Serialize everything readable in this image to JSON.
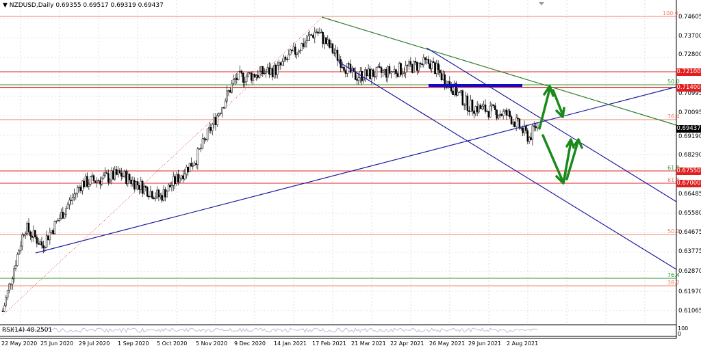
{
  "header": {
    "symbol_text": "NZDUSD,Daily  0.69355 0.69517 0.69319 0.69437",
    "menu_arrow": "▼"
  },
  "rsi": {
    "label": "RSI(14) 48.2501",
    "scale_top": "100",
    "scale_bottom": "0"
  },
  "colors": {
    "red_level": "#e02020",
    "orange_level": "#f08060",
    "green_level": "#2e9a2e",
    "channel": "#1a1aa0",
    "arrow": "#1a8a1a",
    "blue_bar": "#0a0ad0"
  },
  "price_ticks": [
    "0.74605",
    "0.73700",
    "0.72800",
    "0.70995",
    "0.70095",
    "0.69190",
    "0.68290",
    "0.66485",
    "0.65580",
    "0.64675",
    "0.63775",
    "0.62870",
    "0.61970",
    "0.61065"
  ],
  "price_badges": {
    "r1": "0.72100",
    "r2": "0.71400",
    "current": "0.69437",
    "r3": "0.67550",
    "r4": "0.67000"
  },
  "fib_labels": {
    "f100": "100.0",
    "f50a": "50.0",
    "f764a": "76.4",
    "f618a": "61.8",
    "f618b": "61.8",
    "f50b": "50.0",
    "f764b": "76.4",
    "f382": "38.2"
  },
  "date_ticks": [
    "22 May 2020",
    "25 Jun 2020",
    "29 Jul 2020",
    "1 Sep 2020",
    "5 Oct 2020",
    "5 Nov 2020",
    "9 Dec 2020",
    "14 Jan 2021",
    "17 Feb 2021",
    "21 Mar 2021",
    "22 Apr 2021",
    "26 May 2021",
    "29 Jun 2021",
    "2 Aug 2021"
  ],
  "chart_data": {
    "type": "candlestick",
    "symbol": "NZDUSD",
    "timeframe": "Daily",
    "ohlc_last": {
      "open": 0.69355,
      "high": 0.69517,
      "low": 0.69319,
      "close": 0.69437
    },
    "y_range": [
      0.6075,
      0.7485
    ],
    "horizontal_levels": [
      0.721,
      0.714,
      0.6755,
      0.67
    ],
    "approx_close_path": [
      {
        "date": "2020-05-22",
        "close": 0.612
      },
      {
        "date": "2020-06-10",
        "close": 0.649
      },
      {
        "date": "2020-06-25",
        "close": 0.641
      },
      {
        "date": "2020-07-29",
        "close": 0.668
      },
      {
        "date": "2020-09-01",
        "close": 0.672
      },
      {
        "date": "2020-10-05",
        "close": 0.662
      },
      {
        "date": "2020-11-05",
        "close": 0.679
      },
      {
        "date": "2020-12-09",
        "close": 0.714
      },
      {
        "date": "2021-01-14",
        "close": 0.718
      },
      {
        "date": "2021-02-17",
        "close": 0.735
      },
      {
        "date": "2021-03-21",
        "close": 0.715
      },
      {
        "date": "2021-04-22",
        "close": 0.717
      },
      {
        "date": "2021-05-26",
        "close": 0.721
      },
      {
        "date": "2021-06-29",
        "close": 0.702
      },
      {
        "date": "2021-08-02",
        "close": 0.698
      },
      {
        "date": "2021-08-20",
        "close": 0.688
      },
      {
        "date": "2021-08-27",
        "close": 0.6944
      }
    ],
    "rsi": {
      "period": 14,
      "value": 48.2501,
      "range": [
        0,
        100
      ]
    }
  }
}
